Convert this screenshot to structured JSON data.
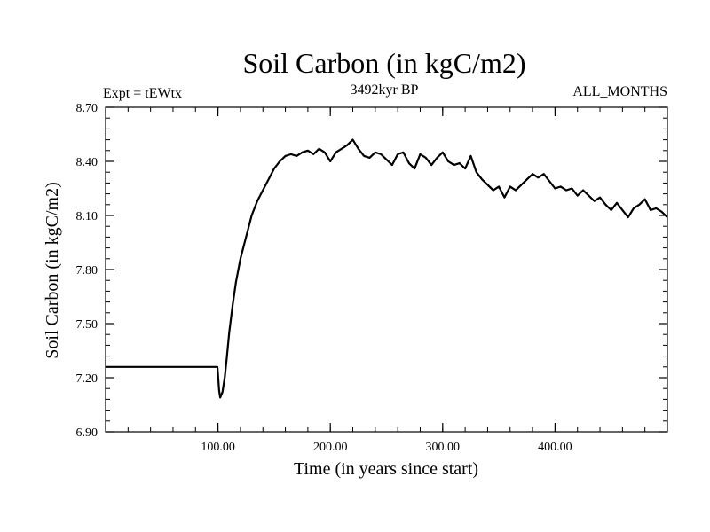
{
  "chart_data": {
    "type": "line",
    "title": "Soil Carbon (in kgC/m2)",
    "subtitle_left": "Expt = tEWtx",
    "subtitle_center": "3492kyr BP",
    "subtitle_right": "ALL_MONTHS",
    "xlabel": "Time (in years since start)",
    "ylabel": "Soil Carbon (in kgC/m2)",
    "xlim": [
      0,
      500
    ],
    "ylim": [
      6.9,
      8.7
    ],
    "x_ticks": [
      100,
      200,
      300,
      400
    ],
    "x_tick_labels": [
      "100.00",
      "200.00",
      "300.00",
      "400.00"
    ],
    "y_ticks": [
      6.9,
      7.2,
      7.5,
      7.8,
      8.1,
      8.4,
      8.7
    ],
    "y_tick_labels": [
      "6.90",
      "7.20",
      "7.50",
      "7.80",
      "8.10",
      "8.40",
      "8.70"
    ],
    "line_color": "#000000",
    "series": [
      {
        "name": "Soil Carbon",
        "x": [
          0,
          99.5,
          100,
          101,
          102,
          104,
          106,
          108,
          110,
          113,
          116,
          120,
          125,
          130,
          135,
          140,
          145,
          150,
          155,
          160,
          165,
          170,
          175,
          180,
          185,
          190,
          195,
          200,
          205,
          210,
          215,
          220,
          225,
          230,
          235,
          240,
          245,
          250,
          255,
          260,
          265,
          270,
          275,
          280,
          285,
          290,
          295,
          300,
          305,
          310,
          315,
          320,
          325,
          330,
          335,
          340,
          345,
          350,
          355,
          360,
          365,
          370,
          375,
          380,
          385,
          390,
          395,
          400,
          405,
          410,
          415,
          420,
          425,
          430,
          435,
          440,
          445,
          450,
          455,
          460,
          465,
          470,
          475,
          480,
          485,
          490,
          495,
          500
        ],
        "y": [
          7.26,
          7.26,
          7.22,
          7.13,
          7.09,
          7.12,
          7.2,
          7.32,
          7.45,
          7.6,
          7.73,
          7.86,
          7.98,
          8.1,
          8.18,
          8.24,
          8.3,
          8.36,
          8.4,
          8.43,
          8.44,
          8.43,
          8.45,
          8.46,
          8.44,
          8.47,
          8.45,
          8.4,
          8.45,
          8.47,
          8.49,
          8.52,
          8.47,
          8.43,
          8.42,
          8.45,
          8.44,
          8.41,
          8.38,
          8.44,
          8.45,
          8.39,
          8.36,
          8.44,
          8.42,
          8.38,
          8.42,
          8.45,
          8.4,
          8.38,
          8.39,
          8.36,
          8.43,
          8.34,
          8.3,
          8.27,
          8.24,
          8.26,
          8.2,
          8.26,
          8.24,
          8.27,
          8.3,
          8.33,
          8.31,
          8.33,
          8.29,
          8.25,
          8.26,
          8.24,
          8.25,
          8.21,
          8.24,
          8.21,
          8.18,
          8.2,
          8.16,
          8.13,
          8.17,
          8.13,
          8.09,
          8.14,
          8.16,
          8.19,
          8.13,
          8.14,
          8.12,
          8.09
        ]
      }
    ]
  }
}
